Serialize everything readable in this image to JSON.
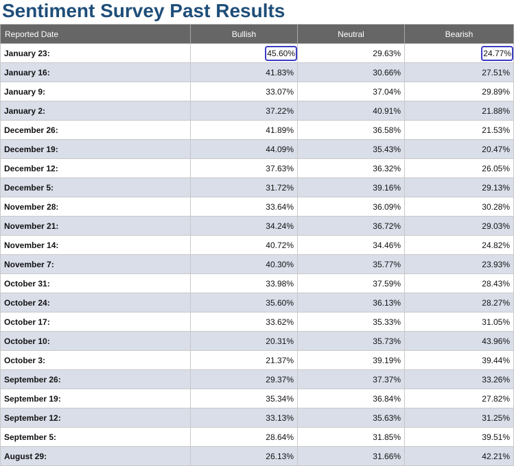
{
  "page_title": "Sentiment Survey Past Results",
  "highlight_color": "#3a3bc2",
  "header_color": "#666666",
  "stripe_color": "#d9dee9",
  "chart_data": {
    "type": "table",
    "title": "Sentiment Survey Past Results",
    "columns": [
      "Reported Date",
      "Bullish",
      "Neutral",
      "Bearish"
    ],
    "rows": [
      [
        "January 23:",
        "45.60%",
        "29.63%",
        "24.77%"
      ],
      [
        "January 16:",
        "41.83%",
        "30.66%",
        "27.51%"
      ],
      [
        "January 9:",
        "33.07%",
        "37.04%",
        "29.89%"
      ],
      [
        "January 2:",
        "37.22%",
        "40.91%",
        "21.88%"
      ],
      [
        "December 26:",
        "41.89%",
        "36.58%",
        "21.53%"
      ],
      [
        "December 19:",
        "44.09%",
        "35.43%",
        "20.47%"
      ],
      [
        "December 12:",
        "37.63%",
        "36.32%",
        "26.05%"
      ],
      [
        "December 5:",
        "31.72%",
        "39.16%",
        "29.13%"
      ],
      [
        "November 28:",
        "33.64%",
        "36.09%",
        "30.28%"
      ],
      [
        "November 21:",
        "34.24%",
        "36.72%",
        "29.03%"
      ],
      [
        "November 14:",
        "40.72%",
        "34.46%",
        "24.82%"
      ],
      [
        "November 7:",
        "40.30%",
        "35.77%",
        "23.93%"
      ],
      [
        "October 31:",
        "33.98%",
        "37.59%",
        "28.43%"
      ],
      [
        "October 24:",
        "35.60%",
        "36.13%",
        "28.27%"
      ],
      [
        "October 17:",
        "33.62%",
        "35.33%",
        "31.05%"
      ],
      [
        "October 10:",
        "20.31%",
        "35.73%",
        "43.96%"
      ],
      [
        "October 3:",
        "21.37%",
        "39.19%",
        "39.44%"
      ],
      [
        "September 26:",
        "29.37%",
        "37.37%",
        "33.26%"
      ],
      [
        "September 19:",
        "35.34%",
        "36.84%",
        "27.82%"
      ],
      [
        "September 12:",
        "33.13%",
        "35.63%",
        "31.25%"
      ],
      [
        "September 5:",
        "28.64%",
        "31.85%",
        "39.51%"
      ],
      [
        "August 29:",
        "26.13%",
        "31.66%",
        "42.21%"
      ]
    ],
    "highlighted_cells": [
      [
        0,
        1
      ],
      [
        0,
        3
      ]
    ]
  }
}
